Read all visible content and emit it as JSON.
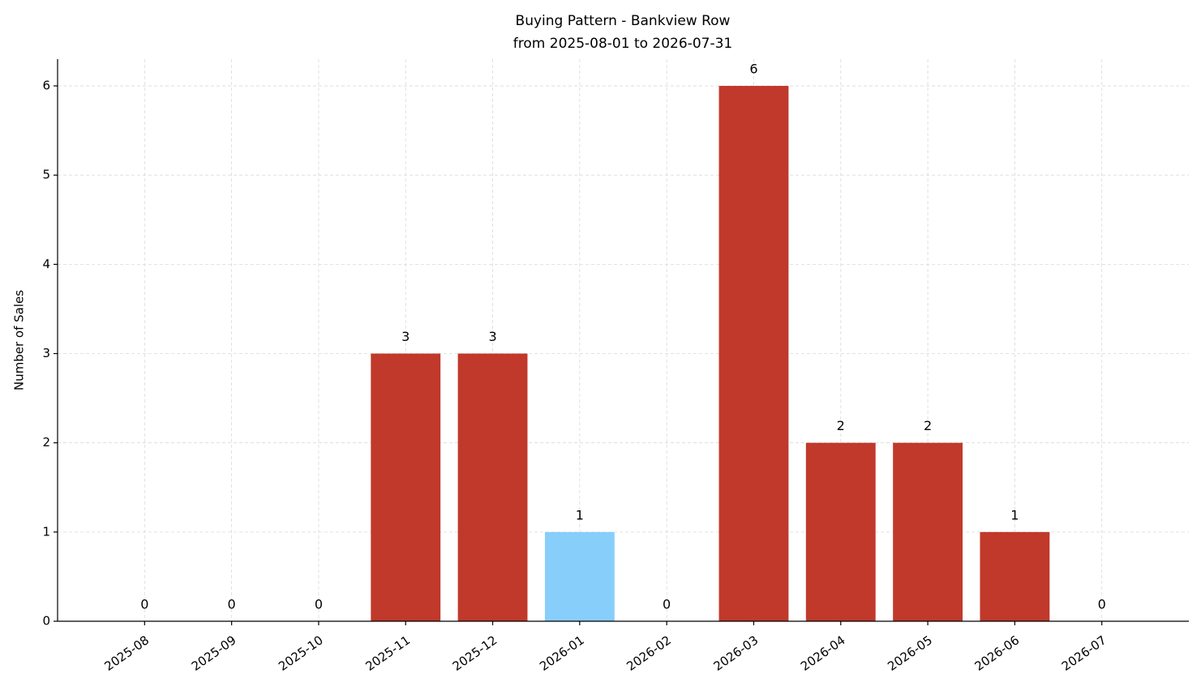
{
  "chart_data": {
    "type": "bar",
    "title": "Buying Pattern - Bankview Row",
    "subtitle": "from 2025-08-01 to 2026-07-31",
    "y_label": "Number of Sales",
    "categories": [
      "2025-08",
      "2025-09",
      "2025-10",
      "2025-11",
      "2025-12",
      "2026-01",
      "2026-02",
      "2026-03",
      "2026-04",
      "2026-05",
      "2026-06",
      "2026-07"
    ],
    "values": [
      0,
      0,
      0,
      3,
      3,
      1,
      0,
      6,
      2,
      2,
      1,
      0
    ],
    "colors": [
      "#c0392b",
      "#c0392b",
      "#c0392b",
      "#c0392b",
      "#c0392b",
      "#87cefa",
      "#c0392b",
      "#c0392b",
      "#c0392b",
      "#c0392b",
      "#c0392b",
      "#c0392b"
    ],
    "ylim": [
      0,
      6.3
    ],
    "yticks": [
      0,
      1,
      2,
      3,
      4,
      5,
      6
    ],
    "grid": true
  }
}
